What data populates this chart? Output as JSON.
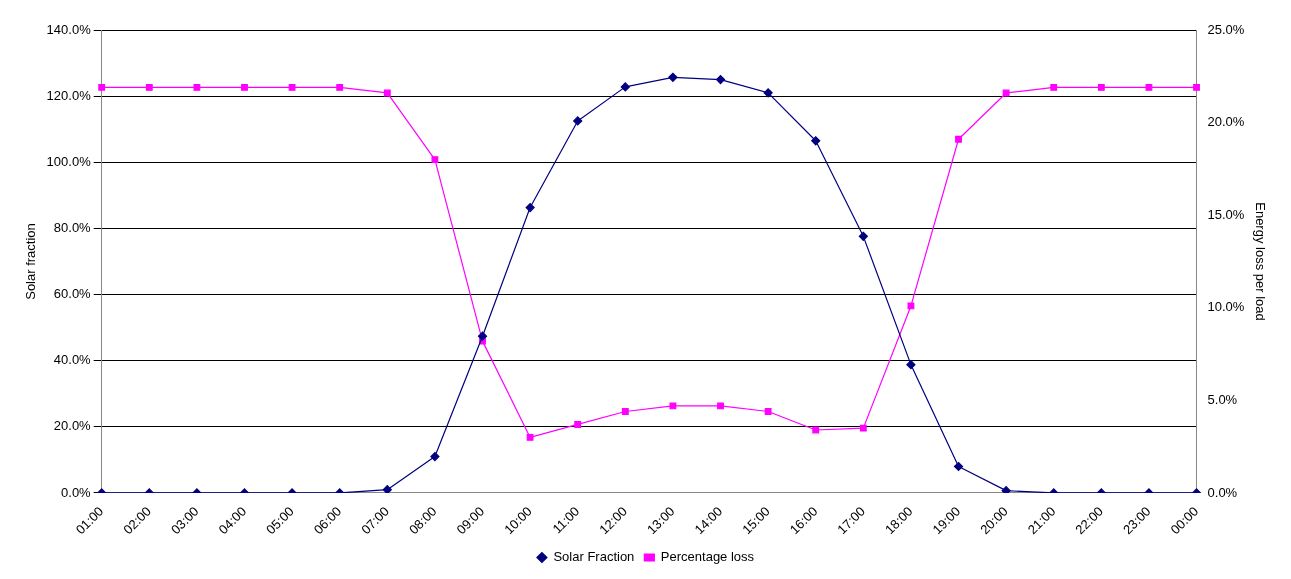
{
  "chart_data": {
    "type": "line",
    "ylabel": "Solar fraction",
    "y2label": "Energy loss per load",
    "categories": [
      "01:00",
      "02:00",
      "03:00",
      "04:00",
      "05:00",
      "06:00",
      "07:00",
      "08:00",
      "09:00",
      "10:00",
      "11:00",
      "12:00",
      "13:00",
      "14:00",
      "15:00",
      "16:00",
      "17:00",
      "18:00",
      "19:00",
      "20:00",
      "21:00",
      "22:00",
      "23:00",
      "00:00"
    ],
    "series": [
      {
        "name": "Solar Fraction",
        "color": "#000080",
        "marker": "diamond",
        "values": [
          0,
          0,
          0,
          0,
          0,
          0,
          1,
          11,
          47.4,
          86.3,
          112.5,
          122.8,
          125.7,
          125,
          121,
          106.5,
          77.6,
          38.8,
          8,
          0.7,
          0,
          0,
          0,
          0
        ]
      },
      {
        "name": "Percentage loss",
        "color": "#ff00ff",
        "marker": "square",
        "axis": "y2",
        "values": [
          21.9,
          21.9,
          21.9,
          21.9,
          21.9,
          21.9,
          21.6,
          18.0,
          8.2,
          3.0,
          3.7,
          4.4,
          4.7,
          4.7,
          4.4,
          3.4,
          3.5,
          10.1,
          19.1,
          21.6,
          21.9,
          21.9,
          21.9,
          21.9
        ]
      }
    ],
    "ylim": [
      0,
      140
    ],
    "yticks": [
      {
        "value": 0,
        "label": "0.0%"
      },
      {
        "value": 20,
        "label": "20.0%"
      },
      {
        "value": 40,
        "label": "40.0%"
      },
      {
        "value": 60,
        "label": "60.0%"
      },
      {
        "value": 80,
        "label": "80.0%"
      },
      {
        "value": 100,
        "label": "100.0%"
      },
      {
        "value": 120,
        "label": "120.0%"
      },
      {
        "value": 140,
        "label": "140.0%"
      }
    ],
    "y2lim": [
      0,
      25
    ],
    "y2ticks": [
      {
        "value": 0,
        "label": "0.0%"
      },
      {
        "value": 5,
        "label": "5.0%"
      },
      {
        "value": 10,
        "label": "10.0%"
      },
      {
        "value": 15,
        "label": "15.0%"
      },
      {
        "value": 20,
        "label": "20.0%"
      },
      {
        "value": 25,
        "label": "25.0%"
      }
    ],
    "grid": "y",
    "legend": "bottom",
    "line_style": "solid"
  }
}
